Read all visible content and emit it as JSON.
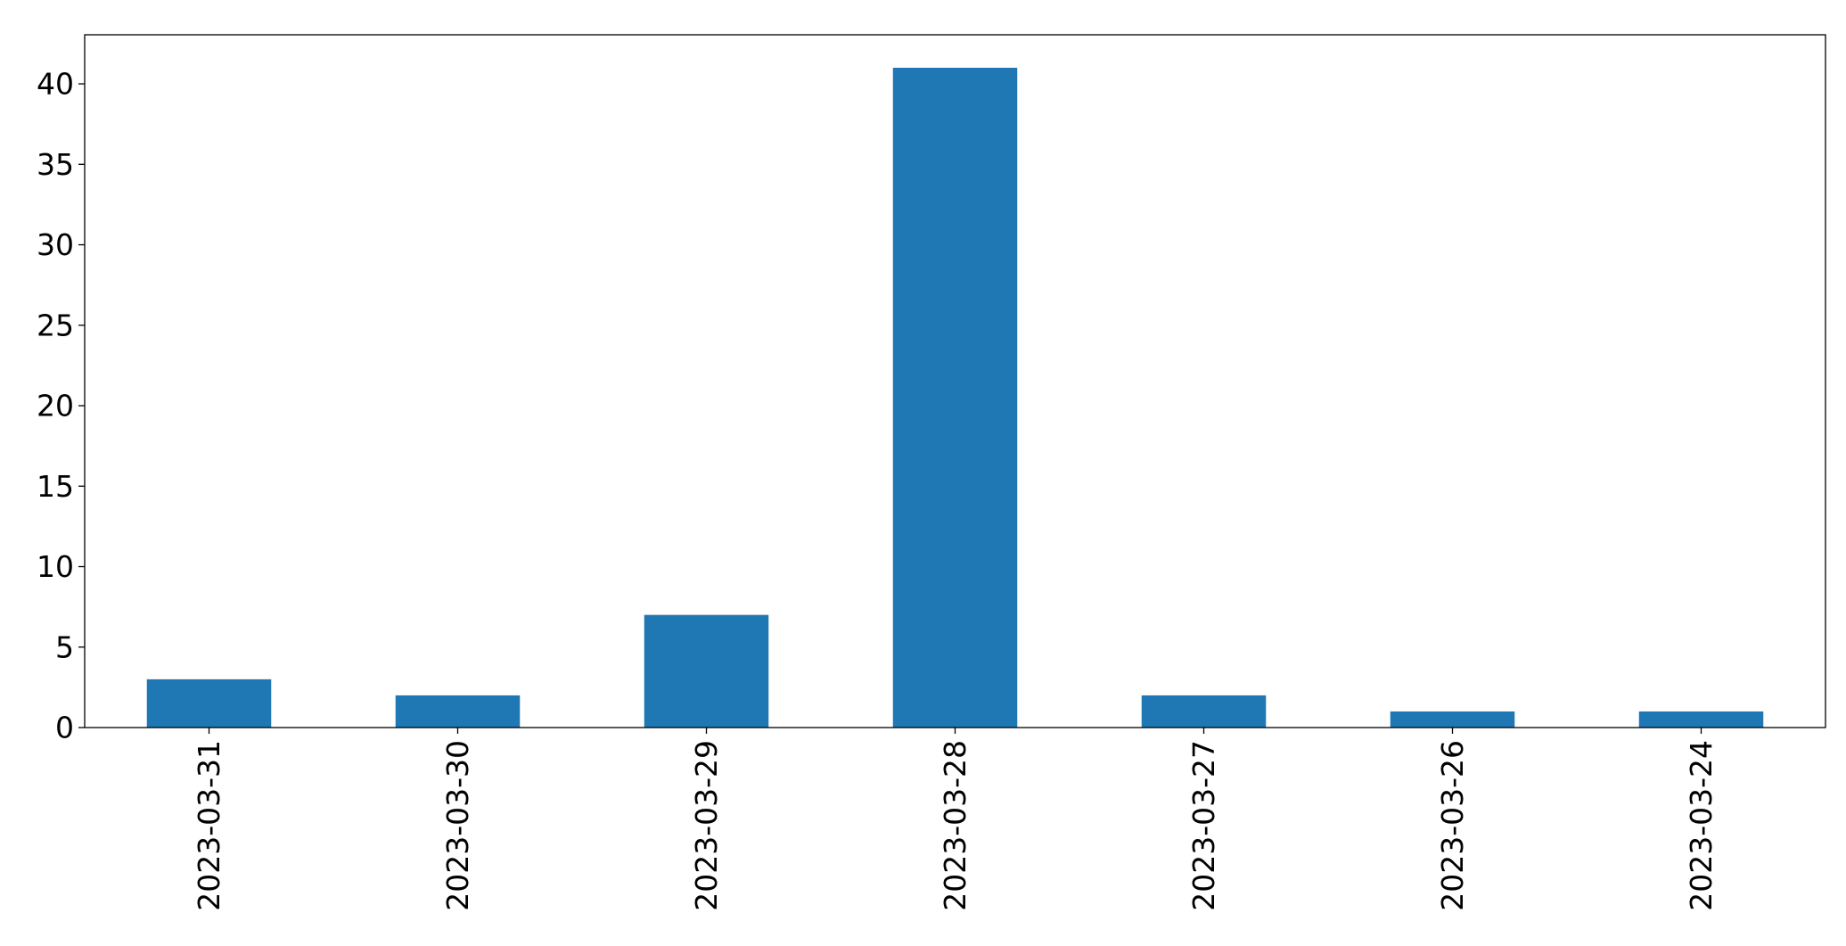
{
  "chart_data": {
    "type": "bar",
    "title": "",
    "xlabel": "",
    "ylabel": "",
    "categories": [
      "2023-03-31",
      "2023-03-30",
      "2023-03-29",
      "2023-03-28",
      "2023-03-27",
      "2023-03-26",
      "2023-03-24"
    ],
    "values": [
      3,
      2,
      7,
      41,
      2,
      1,
      1
    ],
    "ylim": [
      0,
      43.05
    ],
    "yticks": [
      0,
      5,
      10,
      15,
      20,
      25,
      30,
      35,
      40
    ],
    "bar_color": "#1f77b4",
    "grid": false,
    "legend": "none",
    "x_tick_rotation": "vertical"
  }
}
